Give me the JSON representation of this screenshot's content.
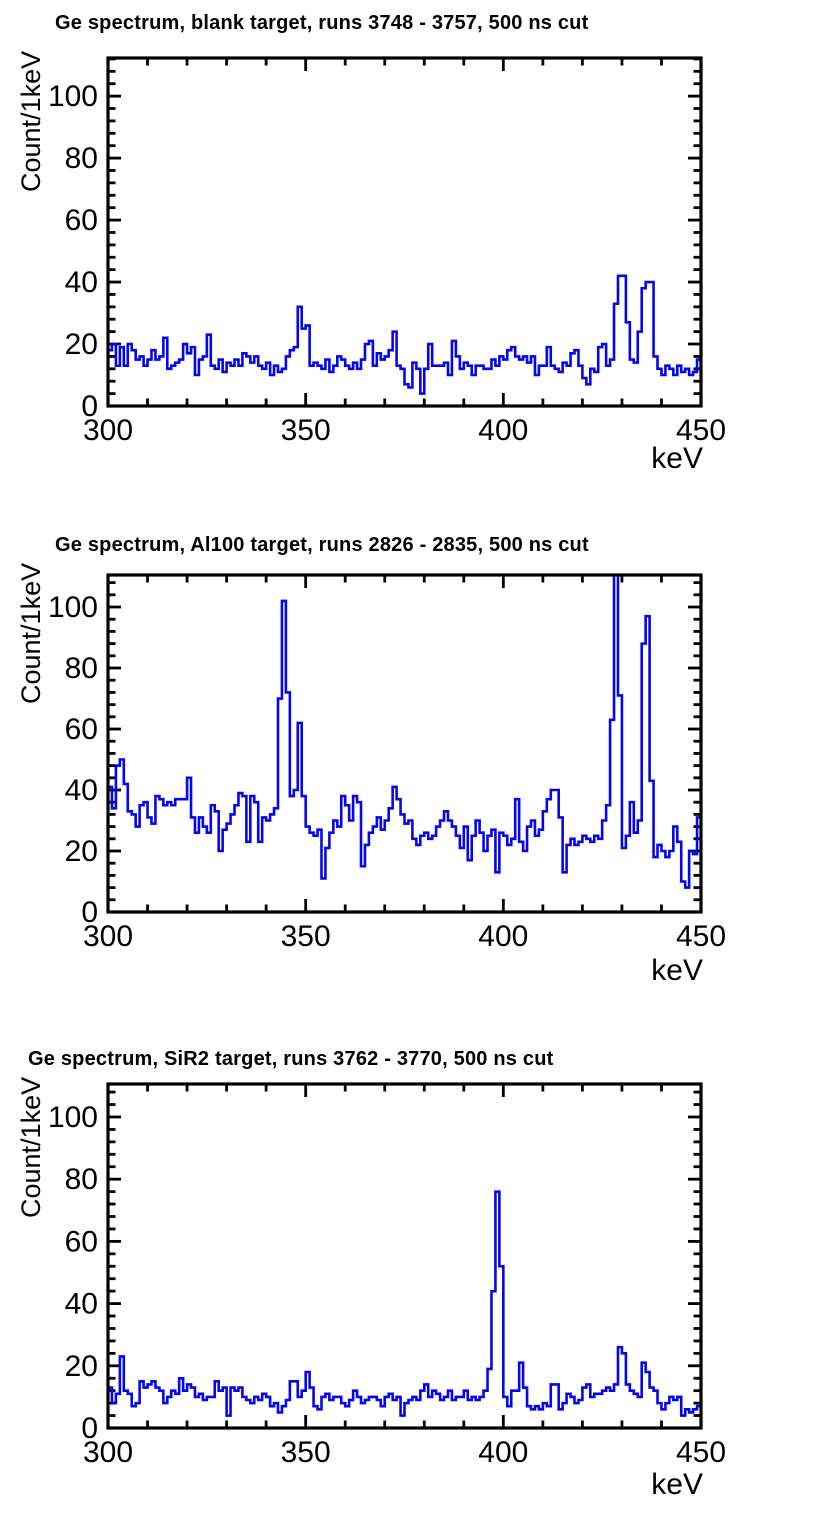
{
  "page": {
    "background": "#ffffff"
  },
  "chart_data": [
    {
      "type": "histogram-step",
      "title": "Ge spectrum, blank target, runs 3748 - 3757, 500 ns cut",
      "xlabel": "keV",
      "ylabel": "Count/1keV",
      "x_start": 300,
      "bin_width_keV": 1,
      "xlim": [
        300,
        450
      ],
      "ylim": [
        0,
        112.3
      ],
      "x_major_ticks": [
        300,
        350,
        400,
        450
      ],
      "x_minor_step": 10,
      "y_major_ticks": [
        0,
        20,
        40,
        60,
        80,
        100
      ],
      "y_minor_step": 4,
      "line_color": "#0606ee",
      "axis_color": "#000000",
      "values": [
        18,
        20,
        13,
        19,
        13,
        20,
        18,
        15,
        16,
        13,
        15,
        18,
        15,
        16,
        22,
        12,
        13,
        14,
        15,
        20,
        17,
        19,
        10,
        15,
        16,
        23,
        13,
        12,
        15,
        11,
        14,
        13,
        15,
        13,
        17,
        16,
        14,
        16,
        13,
        12,
        14,
        10,
        13,
        11,
        12,
        16,
        18,
        19,
        32,
        25,
        26,
        13,
        14,
        13,
        12,
        15,
        11,
        13,
        16,
        15,
        13,
        12,
        14,
        12,
        15,
        20,
        21,
        13,
        17,
        15,
        16,
        18,
        24,
        13,
        12,
        7,
        6,
        14,
        12,
        4,
        12,
        20,
        13,
        13,
        13,
        14,
        10,
        21,
        16,
        12,
        14,
        13,
        10,
        13,
        13,
        12,
        12,
        15,
        13,
        16,
        15,
        18,
        19,
        16,
        15,
        16,
        14,
        16,
        10,
        13,
        13,
        19,
        13,
        12,
        11,
        14,
        13,
        17,
        18,
        13,
        9,
        7,
        12,
        11,
        19,
        20,
        13,
        15,
        33,
        42,
        42,
        27,
        15,
        14,
        24,
        38,
        40,
        40,
        16,
        12,
        10,
        13,
        12,
        10,
        13,
        11,
        12,
        10,
        11,
        15
      ]
    },
    {
      "type": "histogram-step",
      "title": "Ge spectrum, Al100 target, runs 2826 - 2835, 500 ns cut",
      "xlabel": "keV",
      "ylabel": "Count/1keV",
      "x_start": 300,
      "bin_width_keV": 1,
      "xlim": [
        300,
        450
      ],
      "ylim": [
        0,
        110.5
      ],
      "x_major_ticks": [
        300,
        350,
        400,
        450
      ],
      "x_minor_step": 10,
      "y_major_ticks": [
        0,
        20,
        40,
        60,
        80,
        100
      ],
      "y_minor_step": 4,
      "line_color": "#0606ee",
      "axis_color": "#000000",
      "values": [
        41,
        34,
        48,
        50,
        42,
        33,
        32,
        28,
        35,
        36,
        31,
        29,
        38,
        37,
        35,
        36,
        35,
        37,
        37,
        37,
        44,
        31,
        26,
        31,
        28,
        26,
        35,
        33,
        20,
        27,
        29,
        32,
        35,
        39,
        38,
        23,
        38,
        36,
        23,
        31,
        30,
        32,
        34,
        70,
        102,
        72,
        38,
        40,
        62,
        38,
        28,
        26,
        25,
        27,
        11,
        21,
        26,
        30,
        28,
        38,
        35,
        30,
        38,
        36,
        15,
        22,
        26,
        28,
        31,
        27,
        30,
        34,
        41,
        37,
        32,
        29,
        30,
        24,
        22,
        25,
        26,
        24,
        25,
        28,
        30,
        33,
        30,
        28,
        25,
        21,
        28,
        17,
        25,
        30,
        26,
        20,
        25,
        27,
        13,
        26,
        25,
        22,
        24,
        37,
        23,
        20,
        28,
        30,
        25,
        27,
        33,
        37,
        40,
        40,
        31,
        13,
        22,
        24,
        22,
        23,
        25,
        24,
        23,
        25,
        24,
        30,
        35,
        63,
        112,
        71,
        21,
        25,
        36,
        26,
        30,
        88,
        97,
        43,
        18,
        22,
        20,
        18,
        20,
        28,
        23,
        10,
        8,
        20,
        19,
        31
      ]
    },
    {
      "type": "histogram-step",
      "title": "Ge spectrum, SiR2 target, runs 3762 - 3770, 500 ns cut",
      "xlabel": "keV",
      "ylabel": "Count/1keV",
      "x_start": 300,
      "bin_width_keV": 1,
      "xlim": [
        300,
        450
      ],
      "ylim": [
        0,
        110.6
      ],
      "x_major_ticks": [
        300,
        350,
        400,
        450
      ],
      "x_minor_step": 10,
      "y_major_ticks": [
        0,
        20,
        40,
        60,
        80,
        100
      ],
      "y_minor_step": 4,
      "line_color": "#0606ee",
      "axis_color": "#000000",
      "values": [
        13,
        8,
        11,
        23,
        12,
        11,
        7,
        8,
        15,
        13,
        14,
        15,
        13,
        12,
        8,
        10,
        12,
        11,
        16,
        12,
        14,
        13,
        10,
        11,
        9,
        10,
        10,
        15,
        12,
        13,
        4,
        13,
        12,
        13,
        10,
        9,
        8,
        10,
        9,
        11,
        10,
        7,
        8,
        5,
        7,
        9,
        15,
        15,
        10,
        12,
        18,
        13,
        7,
        6,
        10,
        11,
        9,
        10,
        10,
        8,
        7,
        9,
        12,
        10,
        8,
        9,
        10,
        10,
        9,
        7,
        10,
        11,
        9,
        10,
        4,
        8,
        9,
        10,
        9,
        12,
        14,
        10,
        12,
        11,
        9,
        10,
        12,
        9,
        10,
        10,
        12,
        9,
        10,
        9,
        10,
        12,
        19,
        44,
        76,
        52,
        10,
        7,
        12,
        12,
        21,
        13,
        7,
        6,
        7,
        6,
        8,
        7,
        14,
        14,
        6,
        8,
        11,
        10,
        8,
        9,
        13,
        14,
        10,
        11,
        11,
        12,
        13,
        12,
        14,
        26,
        24,
        14,
        12,
        11,
        10,
        21,
        18,
        13,
        12,
        8,
        6,
        8,
        10,
        9,
        10,
        4,
        6,
        5,
        6,
        7
      ]
    }
  ]
}
